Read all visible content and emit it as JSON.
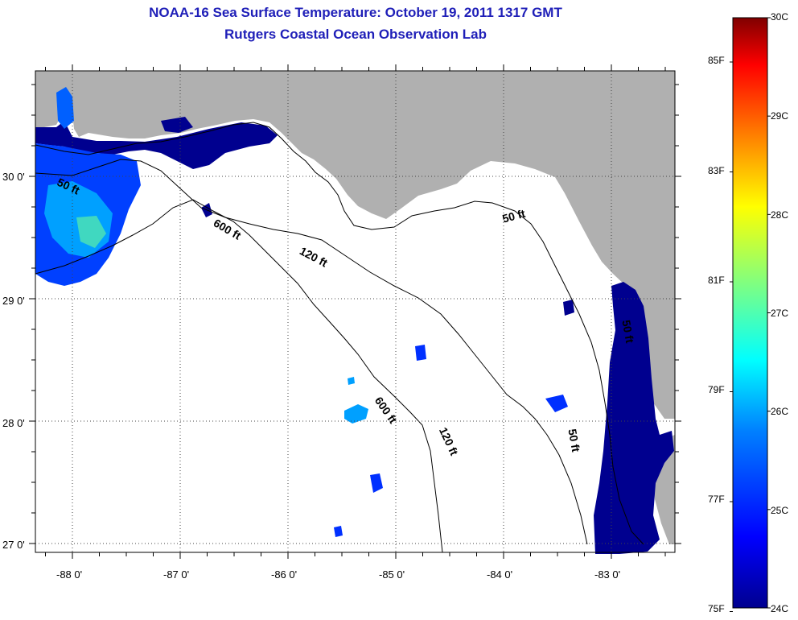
{
  "title": {
    "line1": "NOAA-16 Sea Surface Temperature:  October 19, 2011 1317 GMT",
    "line2": "Rutgers Coastal Ocean Observation Lab"
  },
  "map": {
    "lat_labels": [
      "30 0'",
      "29 0'",
      "28 0'",
      "27 0'"
    ],
    "lon_labels": [
      "-88 0'",
      "-87 0'",
      "-86 0'",
      "-85 0'",
      "-84 0'",
      "-83 0'"
    ],
    "contour_labels": [
      {
        "text": "50 ft",
        "x": -88.15,
        "y": 29.93
      },
      {
        "text": "600 ft",
        "x": -86.7,
        "y": 29.6
      },
      {
        "text": "120 ft",
        "x": -85.9,
        "y": 29.37
      },
      {
        "text": "50 ft",
        "x": -84.0,
        "y": 29.62
      },
      {
        "text": "600 ft",
        "x": -85.2,
        "y": 28.17
      },
      {
        "text": "120 ft",
        "x": -84.6,
        "y": 27.93
      },
      {
        "text": "50 ft",
        "x": -83.4,
        "y": 27.93
      },
      {
        "text": "50 ft",
        "x": -82.9,
        "y": 28.82
      }
    ],
    "colors": {
      "land": "#b0b0b0",
      "ocean_no_data": "#ffffff",
      "sst_main": "#00008f",
      "grid": "#555555"
    }
  },
  "colorbar": {
    "celsius_labels": [
      "30C",
      "29C",
      "28C",
      "27C",
      "26C",
      "25C",
      "24C"
    ],
    "fahrenheit_labels": [
      "85F",
      "83F",
      "81F",
      "79F",
      "77F",
      "75F"
    ],
    "colormap": [
      "#00008f",
      "#0000ff",
      "#0080ff",
      "#00ffff",
      "#80ff80",
      "#ffff00",
      "#ff8000",
      "#ff0000",
      "#800000"
    ]
  }
}
